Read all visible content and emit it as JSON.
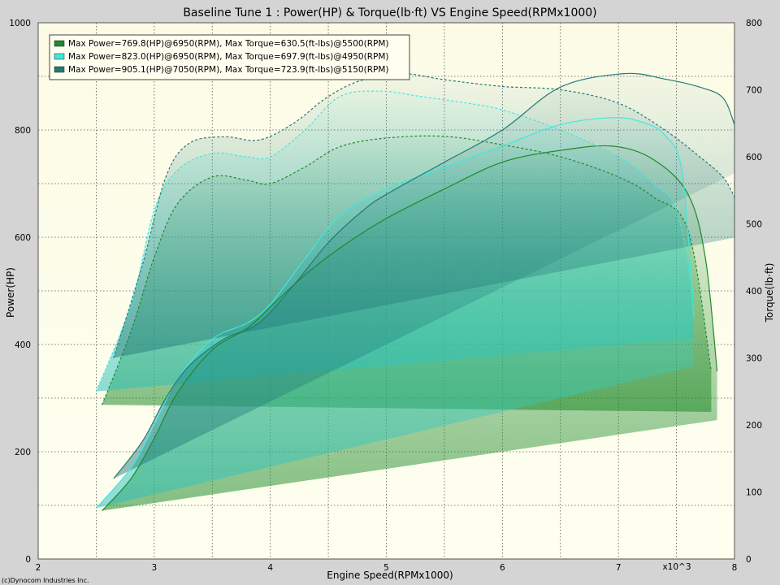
{
  "chart_data": {
    "type": "line",
    "title": "Baseline Tune 1 : Power(HP) & Torque(lb·ft) VS Engine Speed(RPMx1000)",
    "xlabel": "Engine Speed(RPMx1000)",
    "x_multiplier_label": "x10^3",
    "ylabel_left": "Power(HP)",
    "ylabel_right": "Torque(lb·ft)",
    "credit": "(c)Dynocom Industries Inc.",
    "xlim": [
      2,
      8
    ],
    "ylim_left": [
      0,
      1000
    ],
    "ylim_right": [
      0,
      800
    ],
    "x_ticks": [
      "2",
      "3",
      "4",
      "5",
      "6",
      "7",
      "8"
    ],
    "y_ticks_left": [
      "0",
      "200",
      "400",
      "600",
      "800",
      "1000"
    ],
    "y_ticks_right": [
      "0",
      "100",
      "200",
      "300",
      "400",
      "500",
      "600",
      "700",
      "800"
    ],
    "grid": true,
    "legend_position": "top-left",
    "series": [
      {
        "legend": "Max Power=769.8(HP)@6950(RPM), Max Torque=630.5(ft-lbs)@5500(RPM)",
        "color": "#1e8a2a",
        "power": {
          "x": [
            2.55,
            2.8,
            3.0,
            3.2,
            3.5,
            3.8,
            4.0,
            4.3,
            4.6,
            5.0,
            5.5,
            6.0,
            6.5,
            6.95,
            7.3,
            7.6,
            7.75,
            7.85
          ],
          "y": [
            90,
            150,
            225,
            310,
            390,
            430,
            470,
            530,
            580,
            635,
            690,
            740,
            762,
            769.8,
            745,
            680,
            560,
            350
          ]
        },
        "torque": {
          "x": [
            2.55,
            2.8,
            3.0,
            3.2,
            3.5,
            3.8,
            4.0,
            4.3,
            4.6,
            5.0,
            5.5,
            6.0,
            6.5,
            7.0,
            7.3,
            7.6,
            7.8
          ],
          "y": [
            230,
            340,
            450,
            530,
            570,
            565,
            560,
            585,
            615,
            628,
            630.5,
            618,
            600,
            570,
            540,
            490,
            280
          ]
        }
      },
      {
        "legend": "Max Power=823.0(HP)@6950(RPM), Max Torque=697.9(ft-lbs)@4950(RPM)",
        "color": "#3ee8e0",
        "power": {
          "x": [
            2.5,
            2.8,
            3.0,
            3.2,
            3.5,
            3.8,
            4.0,
            4.3,
            4.6,
            5.0,
            5.5,
            6.0,
            6.5,
            6.95,
            7.2,
            7.4,
            7.55,
            7.65
          ],
          "y": [
            95,
            170,
            250,
            335,
            410,
            440,
            475,
            560,
            640,
            690,
            730,
            770,
            810,
            823.0,
            815,
            790,
            720,
            450
          ]
        },
        "torque": {
          "x": [
            2.5,
            2.8,
            3.0,
            3.2,
            3.5,
            3.8,
            4.0,
            4.3,
            4.6,
            4.95,
            5.3,
            5.7,
            6.0,
            6.5,
            7.0,
            7.3,
            7.5,
            7.65
          ],
          "y": [
            250,
            380,
            520,
            580,
            605,
            600,
            600,
            640,
            690,
            697.9,
            690,
            680,
            670,
            640,
            600,
            560,
            520,
            390
          ]
        }
      },
      {
        "legend": "Max Power=905.1(HP)@7050(RPM), Max Torque=723.9(ft-lbs)@5150(RPM)",
        "color": "#227a78",
        "power": {
          "x": [
            2.65,
            2.9,
            3.1,
            3.3,
            3.6,
            3.9,
            4.2,
            4.5,
            4.8,
            5.0,
            5.5,
            6.0,
            6.5,
            7.05,
            7.4,
            7.7,
            7.9,
            8.0
          ],
          "y": [
            150,
            220,
            300,
            360,
            410,
            440,
            510,
            590,
            650,
            680,
            740,
            800,
            880,
            905.1,
            895,
            880,
            860,
            810
          ]
        },
        "torque": {
          "x": [
            2.65,
            2.9,
            3.1,
            3.3,
            3.6,
            3.9,
            4.2,
            4.5,
            4.8,
            5.15,
            5.5,
            6.0,
            6.5,
            7.0,
            7.4,
            7.7,
            7.9,
            8.0
          ],
          "y": [
            300,
            440,
            570,
            620,
            630,
            625,
            650,
            690,
            715,
            723.9,
            715,
            705,
            700,
            680,
            640,
            600,
            570,
            540
          ]
        }
      }
    ]
  }
}
